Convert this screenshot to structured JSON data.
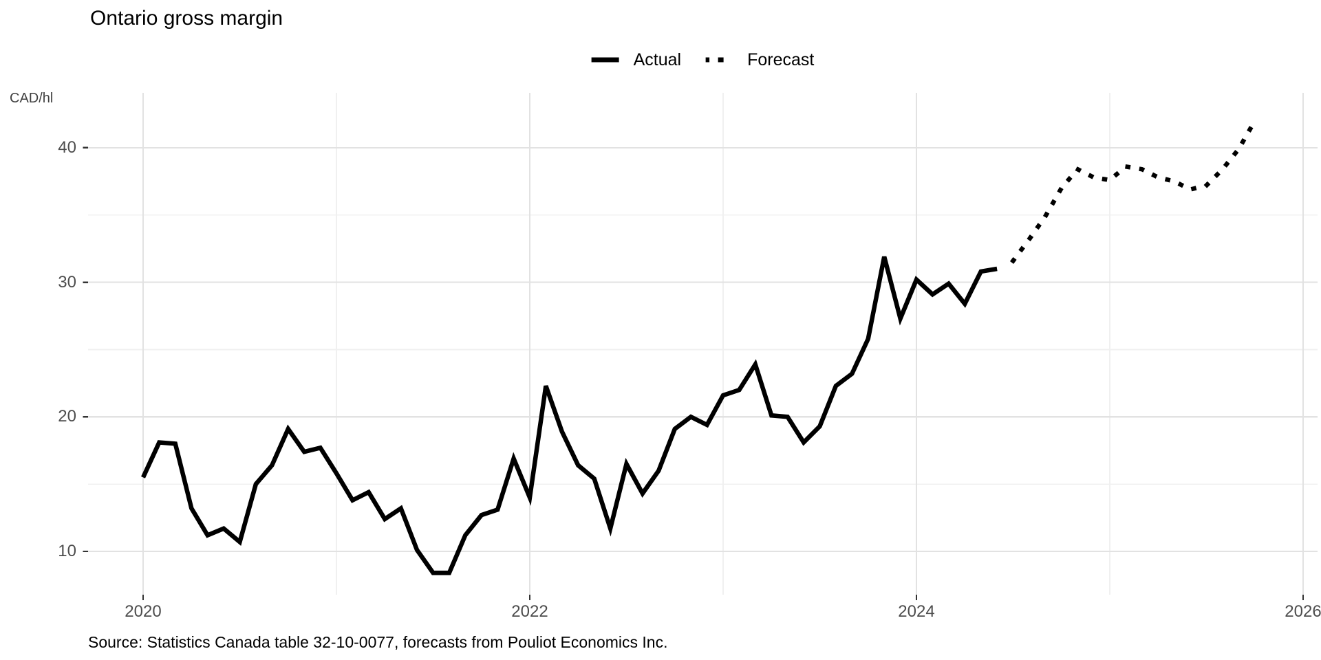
{
  "chart_data": {
    "type": "line",
    "title": "Ontario gross margin",
    "y_axis_label": "CAD/hl",
    "source_note": "Source: Statistics Canada table 32-10-0077, forecasts from Pouliot Economics Inc.",
    "x_axis": {
      "tick_labels": [
        "2020",
        "2022",
        "2024",
        "2026"
      ],
      "tick_years": [
        2020,
        2022,
        2024,
        2026
      ],
      "minor_years": [
        2021,
        2023,
        2025
      ]
    },
    "y_axis": {
      "tick_labels": [
        "10",
        "20",
        "30",
        "40"
      ],
      "tick_values": [
        10,
        20,
        30,
        40
      ],
      "minor_values": [
        15,
        25,
        35
      ]
    },
    "legend": {
      "items": [
        {
          "label": "Actual",
          "linetype": "solid"
        },
        {
          "label": "Forecast",
          "linetype": "dotted"
        }
      ],
      "position": "top-center"
    },
    "series": [
      {
        "name": "Actual",
        "linetype": "solid",
        "color": "#000000",
        "frequency": "monthly",
        "start_year": 2020,
        "start_month": 1,
        "values": [
          15.5,
          18.1,
          18.0,
          13.2,
          11.2,
          11.7,
          10.7,
          15.0,
          16.4,
          19.1,
          17.4,
          17.7,
          15.8,
          13.8,
          14.4,
          12.4,
          13.2,
          10.1,
          8.4,
          8.4,
          11.2,
          12.7,
          13.1,
          16.9,
          14.0,
          22.3,
          18.9,
          16.4,
          15.4,
          11.7,
          16.5,
          14.3,
          16.0,
          19.1,
          20.0,
          19.4,
          21.6,
          22.0,
          23.9,
          20.1,
          20.0,
          18.1,
          19.3,
          22.3,
          23.2,
          25.8,
          31.9,
          27.3,
          30.2,
          29.1,
          29.9,
          28.4,
          30.8,
          31.0
        ]
      },
      {
        "name": "Forecast",
        "linetype": "dotted",
        "color": "#000000",
        "frequency": "monthly",
        "start_year": 2024,
        "start_month": 7,
        "values": [
          31.6,
          33.2,
          34.9,
          37.0,
          38.4,
          37.8,
          37.6,
          38.6,
          38.4,
          37.8,
          37.5,
          36.9,
          37.2,
          38.4,
          39.9,
          42.0
        ]
      }
    ],
    "grid": {
      "major": true,
      "minor": true
    },
    "colors": {
      "line": "#000000",
      "grid_major": "#e2e2e2",
      "grid_minor": "#f0f0f0",
      "tick_mark": "#333333",
      "tick_label": "#4d4d4d",
      "text": "#000000",
      "background": "#ffffff"
    }
  }
}
